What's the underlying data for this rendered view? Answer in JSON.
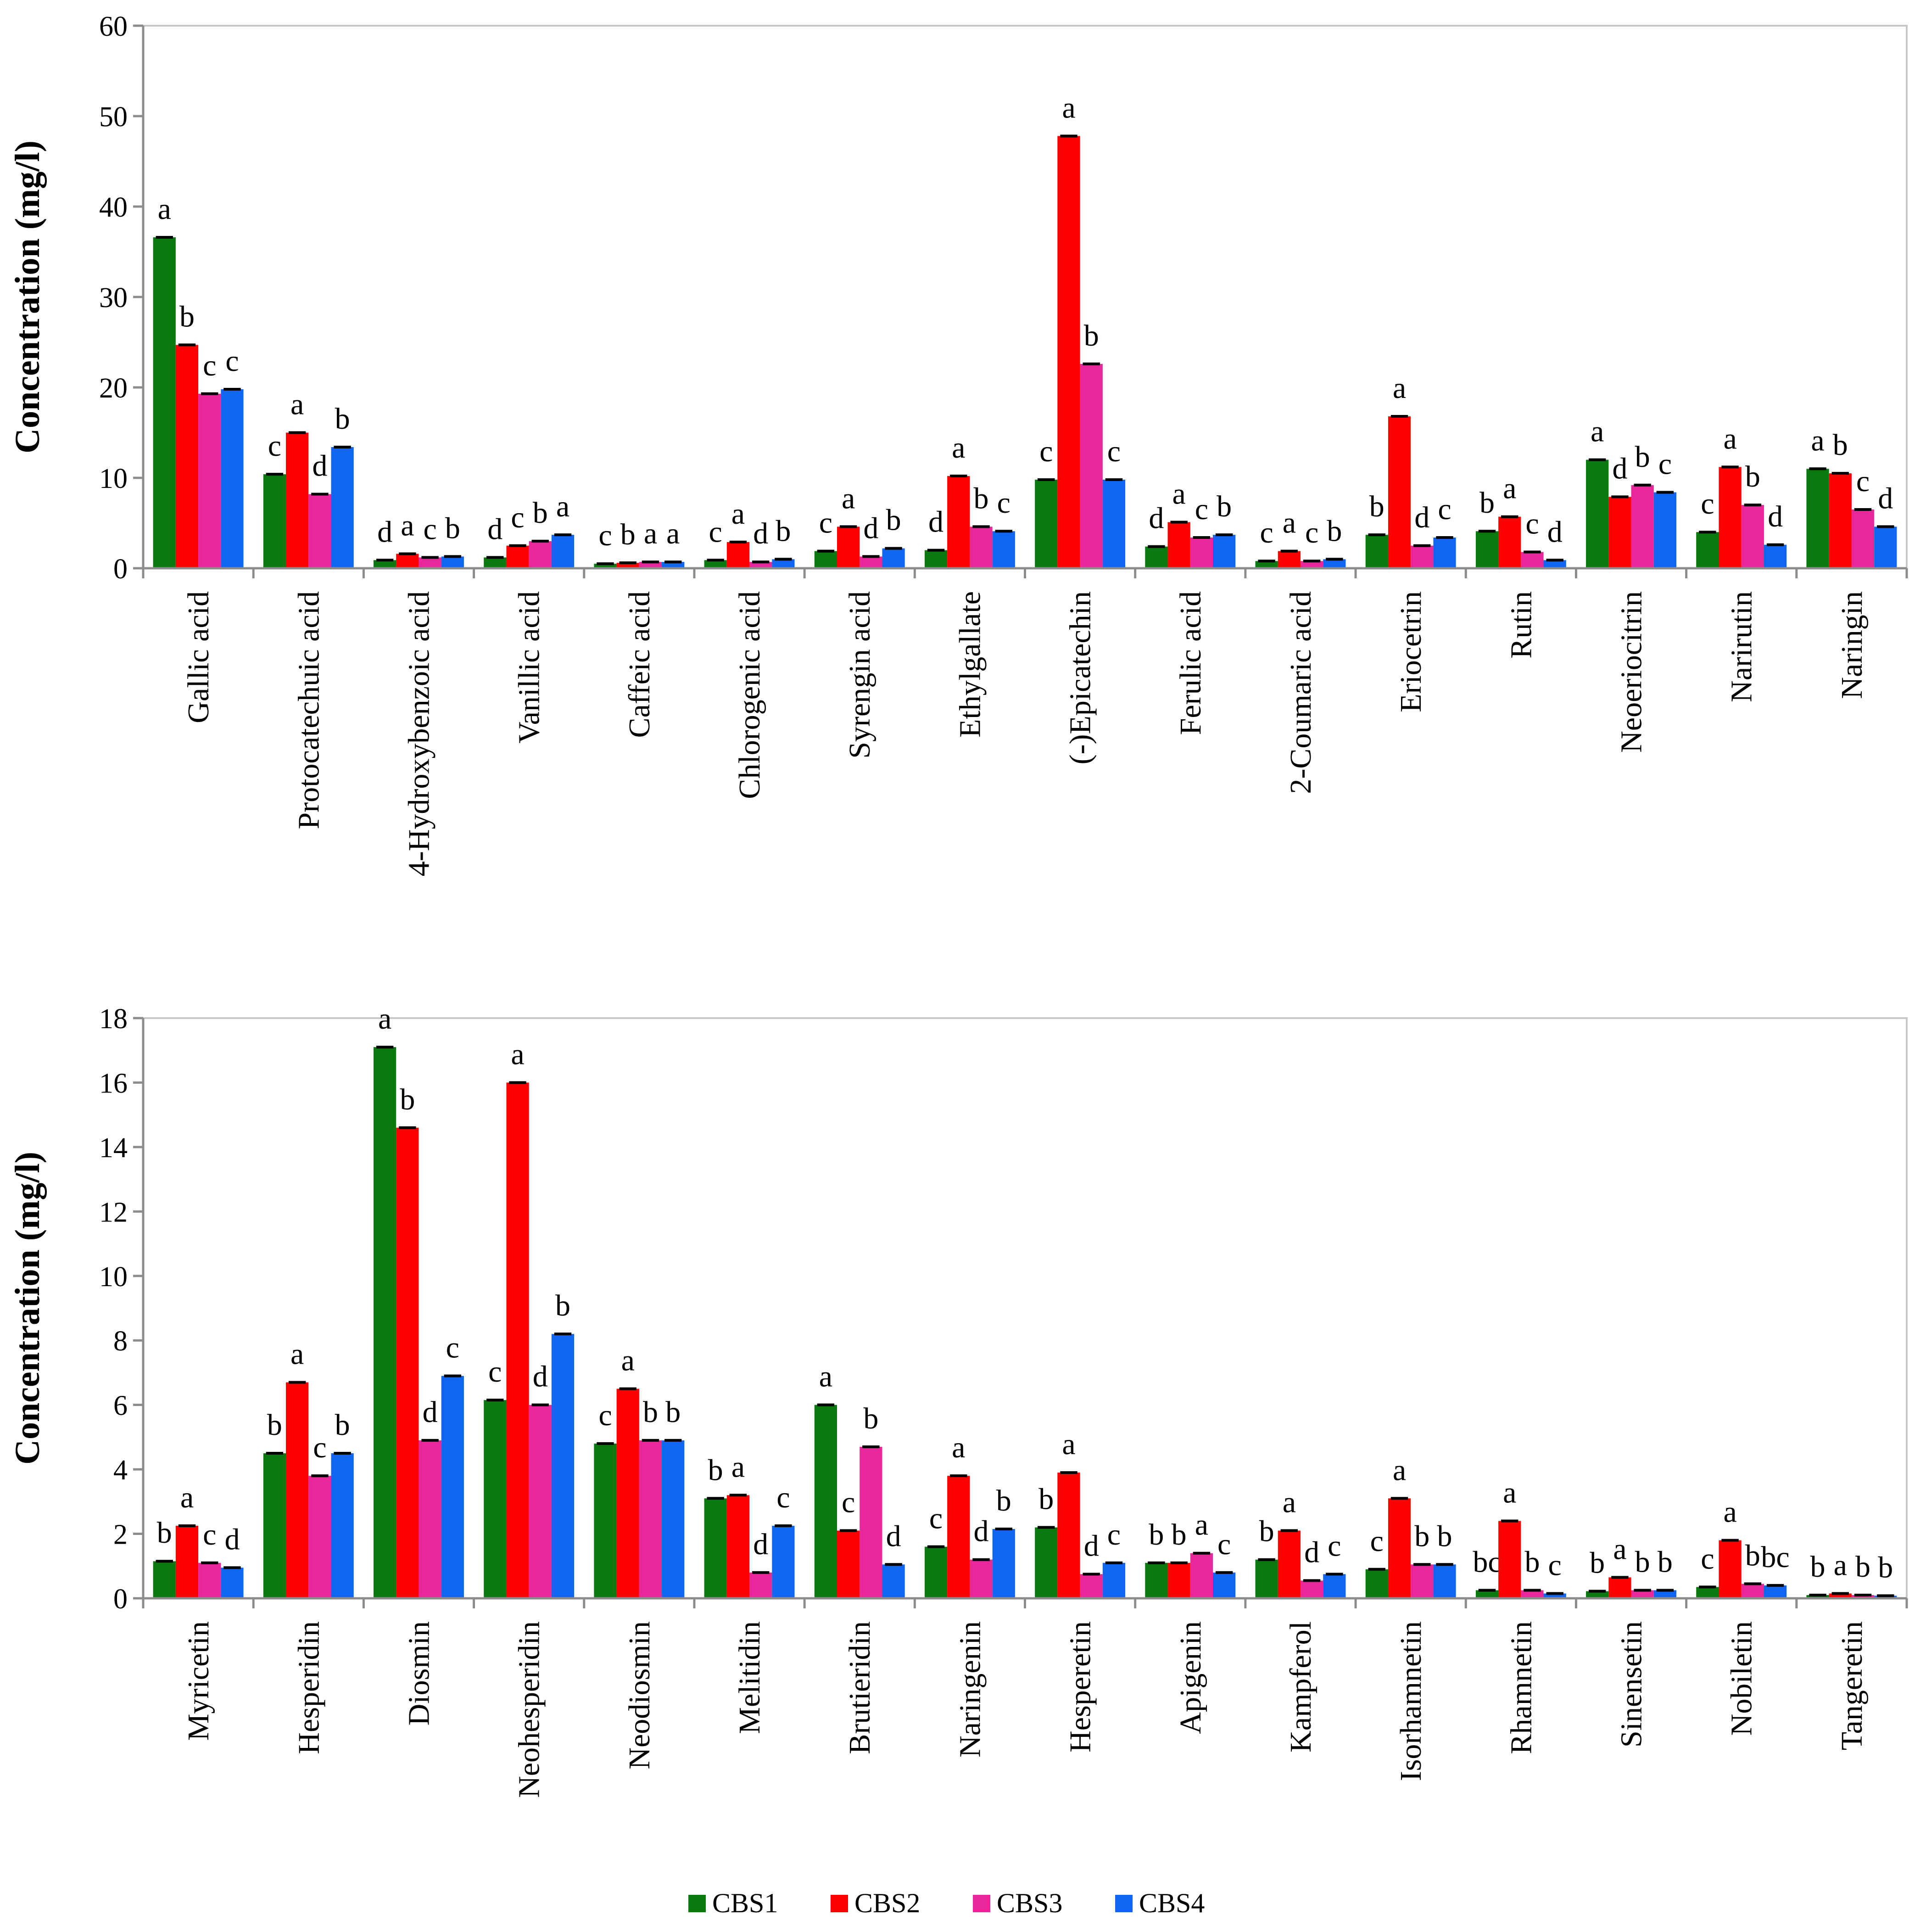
{
  "legend": {
    "items": [
      {
        "label": "CBS1",
        "color": "#0a7a10"
      },
      {
        "label": "CBS2",
        "color": "#ff0000"
      },
      {
        "label": "CBS3",
        "color": "#e8279a"
      },
      {
        "label": "CBS4",
        "color": "#1066f0"
      }
    ]
  },
  "chart_data": [
    {
      "type": "bar",
      "title": "",
      "xlabel": "",
      "ylabel": "Concentration (mg/l)",
      "ylim": [
        0,
        60
      ],
      "yticks": [
        0,
        10,
        20,
        30,
        40,
        50,
        60
      ],
      "grid": false,
      "legend_position": "bottom",
      "categories": [
        "Gallic acid",
        "Protocatechuic acid",
        "4-Hydroxybenzoic acid",
        "Vanillic acid",
        "Caffeic acid",
        "Chlorogenic acid",
        "Syrengin acid",
        "Ethylgallate",
        "(-)Epicatechin",
        "Ferulic acid",
        "2-Coumaric acid",
        "Eriocetrin",
        "Rutin",
        "Neoeriocitrin",
        "Narirutin",
        "Naringin"
      ],
      "series": [
        {
          "name": "CBS1",
          "values": [
            36.6,
            10.4,
            0.9,
            1.2,
            0.5,
            0.9,
            1.9,
            2.0,
            9.8,
            2.4,
            0.8,
            3.7,
            4.1,
            12.0,
            4.0,
            11.0
          ],
          "letters": [
            "a",
            "c",
            "d",
            "d",
            "c",
            "c",
            "c",
            "d",
            "c",
            "d",
            "c",
            "b",
            "b",
            "a",
            "c",
            "a"
          ]
        },
        {
          "name": "CBS2",
          "values": [
            24.7,
            15.0,
            1.6,
            2.5,
            0.6,
            2.9,
            4.6,
            10.2,
            47.8,
            5.1,
            1.9,
            16.8,
            5.7,
            7.9,
            11.2,
            10.5
          ],
          "letters": [
            "b",
            "a",
            "a",
            "c",
            "b",
            "a",
            "a",
            "a",
            "a",
            "a",
            "a",
            "a",
            "a",
            "d",
            "a",
            "b"
          ]
        },
        {
          "name": "CBS3",
          "values": [
            19.3,
            8.2,
            1.2,
            3.0,
            0.7,
            0.7,
            1.3,
            4.6,
            22.6,
            3.4,
            0.8,
            2.5,
            1.8,
            9.2,
            7.0,
            6.5
          ],
          "letters": [
            "c",
            "d",
            "c",
            "b",
            "a",
            "d",
            "d",
            "b",
            "b",
            "c",
            "c",
            "d",
            "c",
            "b",
            "b",
            "c"
          ]
        },
        {
          "name": "CBS4",
          "values": [
            19.8,
            13.4,
            1.3,
            3.7,
            0.7,
            1.0,
            2.2,
            4.1,
            9.8,
            3.7,
            1.0,
            3.4,
            0.9,
            8.4,
            2.6,
            4.6
          ],
          "letters": [
            "c",
            "b",
            "b",
            "a",
            "a",
            "b",
            "b",
            "c",
            "c",
            "b",
            "b",
            "c",
            "d",
            "c",
            "d",
            "d"
          ]
        }
      ]
    },
    {
      "type": "bar",
      "title": "",
      "xlabel": "",
      "ylabel": "Concentration (mg/l)",
      "ylim": [
        0,
        18
      ],
      "yticks": [
        0,
        2,
        4,
        6,
        8,
        10,
        12,
        14,
        16,
        18
      ],
      "grid": false,
      "legend_position": "bottom",
      "categories": [
        "Myricetin",
        "Hesperidin",
        "Diosmin",
        "Neohesperidin",
        "Neodiosmin",
        "Melitidin",
        "Brutieridin",
        "Naringenin",
        "Hesperetin",
        "Apigenin",
        "Kampferol",
        "Isorhamnetin",
        "Rhamnetin",
        "Sinensetin",
        "Nobiletin",
        "Tangeretin"
      ],
      "series": [
        {
          "name": "CBS1",
          "values": [
            1.15,
            4.5,
            17.1,
            6.15,
            4.8,
            3.1,
            6.0,
            1.6,
            2.2,
            1.1,
            1.2,
            0.9,
            0.25,
            0.22,
            0.35,
            0.1
          ],
          "letters": [
            "b",
            "b",
            "a",
            "c",
            "c",
            "b",
            "a",
            "c",
            "b",
            "b",
            "b",
            "c",
            "bc",
            "b",
            "c",
            "b"
          ]
        },
        {
          "name": "CBS2",
          "values": [
            2.25,
            6.7,
            14.6,
            16.0,
            6.5,
            3.2,
            2.1,
            3.8,
            3.9,
            1.1,
            2.1,
            3.1,
            2.4,
            0.65,
            1.8,
            0.15
          ],
          "letters": [
            "a",
            "a",
            "b",
            "a",
            "a",
            "a",
            "c",
            "a",
            "a",
            "b",
            "a",
            "a",
            "a",
            "a",
            "a",
            "a"
          ]
        },
        {
          "name": "CBS3",
          "values": [
            1.1,
            3.8,
            4.9,
            6.0,
            4.9,
            0.8,
            4.7,
            1.2,
            0.75,
            1.4,
            0.55,
            1.05,
            0.25,
            0.25,
            0.45,
            0.1
          ],
          "letters": [
            "c",
            "c",
            "d",
            "d",
            "b",
            "d",
            "b",
            "d",
            "d",
            "a",
            "d",
            "b",
            "b",
            "b",
            "b",
            "b"
          ]
        },
        {
          "name": "CBS4",
          "values": [
            0.95,
            4.5,
            6.9,
            8.2,
            4.9,
            2.25,
            1.05,
            2.15,
            1.1,
            0.8,
            0.75,
            1.05,
            0.15,
            0.25,
            0.4,
            0.08
          ],
          "letters": [
            "d",
            "b",
            "c",
            "b",
            "b",
            "c",
            "d",
            "b",
            "c",
            "c",
            "c",
            "b",
            "c",
            "b",
            "bc",
            "b"
          ]
        }
      ]
    }
  ]
}
